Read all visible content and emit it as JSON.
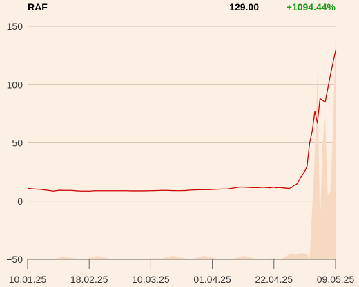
{
  "header": {
    "ticker": "RAF",
    "price": "129.00",
    "change": "+1094.44%",
    "change_color": "#1a9a1a"
  },
  "colors": {
    "line": "#cc0000",
    "volume_area": "#f7d9c2",
    "grid": "#c8b8aa",
    "axis": "#666666",
    "background": "#fcefe3"
  },
  "chart_data": {
    "type": "line",
    "ylim": [
      -50,
      150
    ],
    "yticks": [
      150,
      100,
      50,
      0,
      -50
    ],
    "ytick_labels": [
      "150",
      "100",
      "50",
      "0",
      "−50"
    ],
    "grid": true,
    "x_ticks": [
      "10.01.25",
      "18.02.25",
      "10.03.25",
      "01.04.25",
      "22.04.25",
      "09.05.25"
    ],
    "x_range": [
      "2025-01-10",
      "2025-05-09"
    ],
    "series": [
      {
        "values": [
          [
            "2025-01-10",
            10.8
          ],
          [
            "2025-01-13",
            10.3
          ],
          [
            "2025-01-15",
            10.0
          ],
          [
            "2025-01-17",
            9.5
          ],
          [
            "2025-01-20",
            8.6
          ],
          [
            "2025-01-22",
            9.3
          ],
          [
            "2025-01-24",
            9.2
          ],
          [
            "2025-01-27",
            9.2
          ],
          [
            "2025-01-29",
            8.8
          ],
          [
            "2025-01-31",
            8.6
          ],
          [
            "2025-02-03",
            8.6
          ],
          [
            "2025-02-05",
            8.9
          ],
          [
            "2025-02-07",
            8.9
          ],
          [
            "2025-02-10",
            8.9
          ],
          [
            "2025-02-12",
            8.9
          ],
          [
            "2025-02-14",
            8.9
          ],
          [
            "2025-02-17",
            8.9
          ],
          [
            "2025-02-19",
            8.8
          ],
          [
            "2025-02-21",
            8.8
          ],
          [
            "2025-02-24",
            8.8
          ],
          [
            "2025-02-26",
            8.9
          ],
          [
            "2025-02-28",
            9.0
          ],
          [
            "2025-03-03",
            9.2
          ],
          [
            "2025-03-05",
            9.2
          ],
          [
            "2025-03-07",
            9.0
          ],
          [
            "2025-03-10",
            9.0
          ],
          [
            "2025-03-12",
            9.1
          ],
          [
            "2025-03-14",
            9.4
          ],
          [
            "2025-03-17",
            9.7
          ],
          [
            "2025-03-19",
            9.8
          ],
          [
            "2025-03-21",
            9.8
          ],
          [
            "2025-03-24",
            10.1
          ],
          [
            "2025-03-26",
            10.3
          ],
          [
            "2025-03-28",
            10.3
          ],
          [
            "2025-03-31",
            11.3
          ],
          [
            "2025-04-02",
            12.0
          ],
          [
            "2025-04-04",
            11.9
          ],
          [
            "2025-04-07",
            11.5
          ],
          [
            "2025-04-09",
            11.5
          ],
          [
            "2025-04-11",
            11.8
          ],
          [
            "2025-04-14",
            11.4
          ],
          [
            "2025-04-15",
            11.9
          ],
          [
            "2025-04-16",
            11.4
          ],
          [
            "2025-04-17",
            11.6
          ],
          [
            "2025-04-18",
            11.5
          ],
          [
            "2025-04-21",
            10.8
          ],
          [
            "2025-04-22",
            11.6
          ],
          [
            "2025-04-23",
            13.5
          ],
          [
            "2025-04-24",
            14.5
          ],
          [
            "2025-04-25",
            18.0
          ],
          [
            "2025-04-26",
            22.0
          ],
          [
            "2025-04-27",
            25.0
          ],
          [
            "2025-04-28",
            30.0
          ],
          [
            "2025-04-29",
            50.0
          ],
          [
            "2025-04-30",
            60.0
          ],
          [
            "2025-05-01",
            77.0
          ],
          [
            "2025-05-02",
            67.0
          ],
          [
            "2025-05-03",
            88.0
          ],
          [
            "2025-05-05",
            85.0
          ],
          [
            "2025-05-07",
            108.0
          ],
          [
            "2025-05-09",
            129.0
          ]
        ]
      }
    ],
    "volume_area": [
      [
        "2025-01-10",
        -50
      ],
      [
        "2025-01-20",
        -49.5
      ],
      [
        "2025-01-24",
        -48
      ],
      [
        "2025-02-01",
        -50
      ],
      [
        "2025-02-06",
        -47
      ],
      [
        "2025-02-12",
        -50
      ],
      [
        "2025-03-03",
        -49
      ],
      [
        "2025-03-07",
        -47
      ],
      [
        "2025-03-14",
        -50
      ],
      [
        "2025-03-19",
        -47
      ],
      [
        "2025-03-26",
        -50
      ],
      [
        "2025-03-31",
        -49
      ],
      [
        "2025-04-04",
        -47
      ],
      [
        "2025-04-09",
        -50
      ],
      [
        "2025-04-15",
        -49
      ],
      [
        "2025-04-18",
        -50
      ],
      [
        "2025-04-20",
        -47
      ],
      [
        "2025-04-22",
        -45
      ],
      [
        "2025-04-24",
        -45.5
      ],
      [
        "2025-04-26",
        -44.5
      ],
      [
        "2025-04-28",
        -46
      ],
      [
        "2025-04-29",
        -49
      ],
      [
        "2025-05-01",
        40
      ],
      [
        "2025-05-02",
        110
      ],
      [
        "2025-05-03",
        -20
      ],
      [
        "2025-05-04",
        50
      ],
      [
        "2025-05-05",
        72
      ],
      [
        "2025-05-06",
        5
      ],
      [
        "2025-05-07",
        8
      ],
      [
        "2025-05-08",
        60
      ],
      [
        "2025-05-09",
        140
      ],
      [
        "2025-05-09",
        -50
      ]
    ]
  }
}
